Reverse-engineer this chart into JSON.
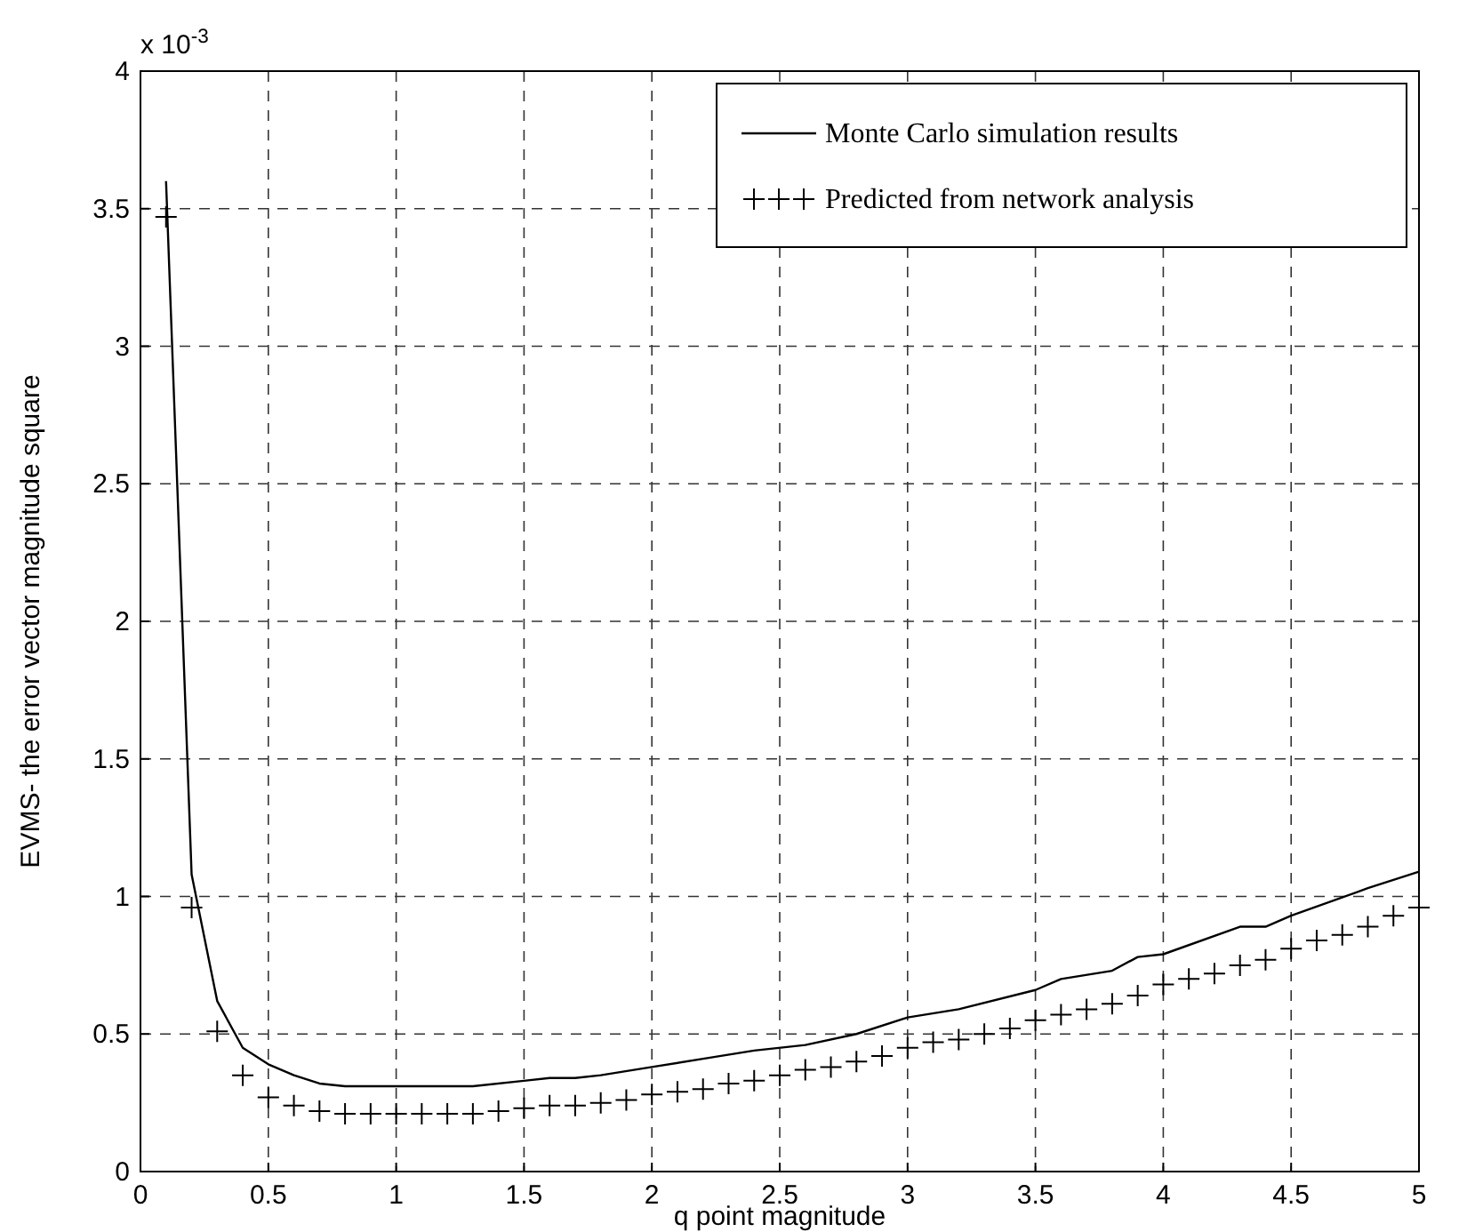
{
  "chart_data": {
    "type": "line",
    "xlabel": "q point magnitude",
    "ylabel": "EVMS- the error vector magnitude square",
    "annotations": [
      "x 10$^{-3}$"
    ],
    "xlim": [
      0,
      5
    ],
    "xticks": [
      0,
      0.5,
      1,
      1.5,
      2,
      2.5,
      3,
      3.5,
      4,
      4.5,
      5
    ],
    "ylim": [
      0,
      4
    ],
    "yticks": [
      0,
      0.5,
      1,
      1.5,
      2,
      2.5,
      3,
      3.5,
      4
    ],
    "grid": true,
    "legend": "top right",
    "series": [
      {
        "name": "Monte Carlo simulation results",
        "color": "#000000",
        "marker": "none",
        "line_style": "solid",
        "x": [
          0.1,
          0.2,
          0.3,
          0.4,
          0.5,
          0.6,
          0.7,
          0.8,
          1.0,
          1.3,
          1.5,
          1.6,
          1.7,
          1.8,
          2.0,
          2.2,
          2.4,
          2.6,
          2.8,
          3.0,
          3.2,
          3.5,
          3.6,
          3.8,
          3.9,
          4.0,
          4.3,
          4.4,
          4.5,
          4.8,
          5.0
        ],
        "values": [
          3.6,
          1.08,
          0.62,
          0.45,
          0.39,
          0.35,
          0.32,
          0.31,
          0.31,
          0.31,
          0.33,
          0.34,
          0.34,
          0.35,
          0.38,
          0.41,
          0.44,
          0.46,
          0.5,
          0.56,
          0.59,
          0.66,
          0.7,
          0.73,
          0.78,
          0.79,
          0.89,
          0.89,
          0.93,
          1.03,
          1.09
        ]
      },
      {
        "name": "Predicted from network analysis",
        "color": "#000000",
        "type": "scatter",
        "marker": "cross",
        "x": [
          0.1,
          0.2,
          0.3,
          0.4,
          0.5,
          0.6,
          0.7,
          0.8,
          0.9,
          1.0,
          1.1,
          1.2,
          1.3,
          1.4,
          1.5,
          1.6,
          1.7,
          1.8,
          1.9,
          2.0,
          2.1,
          2.2,
          2.3,
          2.4,
          2.5,
          2.6,
          2.7,
          2.8,
          2.9,
          3.0,
          3.1,
          3.2,
          3.3,
          3.4,
          3.5,
          3.6,
          3.7,
          3.8,
          3.9,
          4.0,
          4.1,
          4.2,
          4.3,
          4.4,
          4.5,
          4.6,
          4.7,
          4.8,
          4.9,
          5.0
        ],
        "values": [
          3.47,
          0.96,
          0.51,
          0.35,
          0.27,
          0.24,
          0.22,
          0.21,
          0.21,
          0.21,
          0.21,
          0.21,
          0.21,
          0.22,
          0.23,
          0.24,
          0.24,
          0.25,
          0.26,
          0.28,
          0.29,
          0.3,
          0.32,
          0.33,
          0.35,
          0.37,
          0.38,
          0.4,
          0.42,
          0.45,
          0.47,
          0.48,
          0.5,
          0.52,
          0.55,
          0.57,
          0.59,
          0.61,
          0.64,
          0.68,
          0.7,
          0.72,
          0.75,
          0.77,
          0.81,
          0.84,
          0.86,
          0.89,
          0.93,
          0.96
        ]
      }
    ]
  }
}
